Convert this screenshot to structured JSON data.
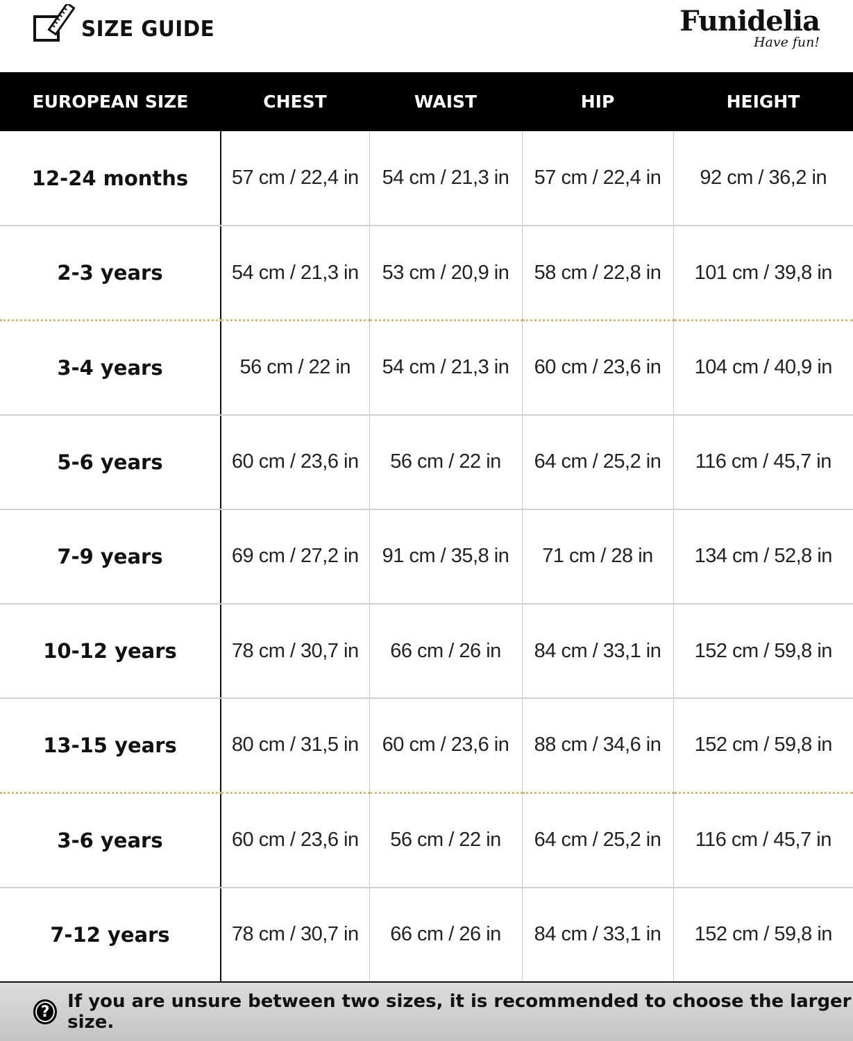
{
  "header": {
    "title": "SIZE GUIDE",
    "brand": "Funidelia",
    "tagline": "Have fun!"
  },
  "table": {
    "columns": [
      "EUROPEAN SIZE",
      "CHEST",
      "WAIST",
      "HIP",
      "HEIGHT"
    ],
    "rows": [
      [
        "12-24 months",
        "57 cm / 22,4 in",
        "54 cm / 21,3 in",
        "57 cm / 22,4 in",
        "92 cm / 36,2 in"
      ],
      [
        "2-3 years",
        "54 cm / 21,3 in",
        "53 cm / 20,9 in",
        "58 cm / 22,8 in",
        "101 cm / 39,8 in"
      ],
      [
        "3-4 years",
        "56 cm / 22 in",
        "54 cm / 21,3 in",
        "60 cm / 23,6 in",
        "104 cm / 40,9 in"
      ],
      [
        "5-6 years",
        "60 cm / 23,6 in",
        "56 cm / 22 in",
        "64 cm / 25,2 in",
        "116 cm / 45,7 in"
      ],
      [
        "7-9 years",
        "69 cm / 27,2 in",
        "91 cm / 35,8 in",
        "71 cm / 28 in",
        "134 cm / 52,8 in"
      ],
      [
        "10-12 years",
        "78 cm / 30,7 in",
        "66 cm / 26 in",
        "84 cm / 33,1 in",
        "152 cm / 59,8 in"
      ],
      [
        "13-15 years",
        "80 cm / 31,5 in",
        "60 cm / 23,6 in",
        "88 cm / 34,6 in",
        "152 cm / 59,8 in"
      ],
      [
        "3-6 years",
        "60 cm / 23,6 in",
        "56 cm / 22 in",
        "64 cm / 25,2 in",
        "116 cm / 45,7 in"
      ],
      [
        "7-12 years",
        "78 cm / 30,7 in",
        "66 cm / 26 in",
        "84 cm / 33,1 in",
        "152 cm / 59,8 in"
      ]
    ]
  },
  "footer": {
    "icon": "question-circle-icon",
    "text": "If you are unsure between two sizes, it is recommended to choose the larger size."
  },
  "colors": {
    "header_bg": "#000000",
    "separator_dotted": "#d8b873",
    "footer_bg": "#d0d0d0"
  }
}
